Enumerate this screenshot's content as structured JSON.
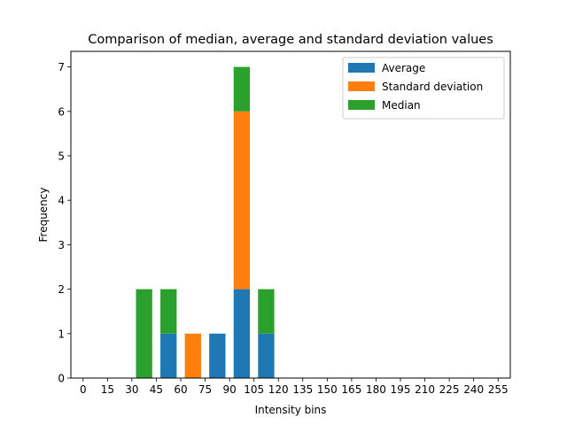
{
  "chart_data": {
    "type": "bar",
    "stacked": true,
    "title": "Comparison of median, average and standard deviation values",
    "xlabel": "Intensity bins",
    "ylabel": "Frequency",
    "x_ticks": [
      0,
      15,
      30,
      45,
      60,
      75,
      90,
      105,
      120,
      135,
      150,
      165,
      180,
      195,
      210,
      225,
      240,
      255
    ],
    "x_tick_labels": [
      "0",
      "15",
      "30",
      "45",
      "60",
      "75",
      "90",
      "105",
      "120",
      "135",
      "150",
      "165",
      "180",
      "195",
      "210",
      "225",
      "240",
      "255"
    ],
    "y_ticks": [
      0,
      1,
      2,
      3,
      4,
      5,
      6,
      7
    ],
    "xlim": [
      -7.5,
      262.5
    ],
    "ylim": [
      0,
      7.35
    ],
    "bin_width": 15,
    "bar_fraction": 0.666,
    "bin_starts": [
      30,
      45,
      60,
      75,
      90,
      105
    ],
    "series": [
      {
        "name": "Average",
        "color": "#1f77b4",
        "values": [
          0,
          1,
          0,
          1,
          2,
          1
        ]
      },
      {
        "name": "Standard deviation",
        "color": "#ff7f0e",
        "values": [
          0,
          0,
          1,
          0,
          4,
          0
        ]
      },
      {
        "name": "Median",
        "color": "#2ca02c",
        "values": [
          2,
          1,
          0,
          0,
          1,
          1
        ]
      }
    ],
    "legend_position": "top-right",
    "grid": false
  }
}
